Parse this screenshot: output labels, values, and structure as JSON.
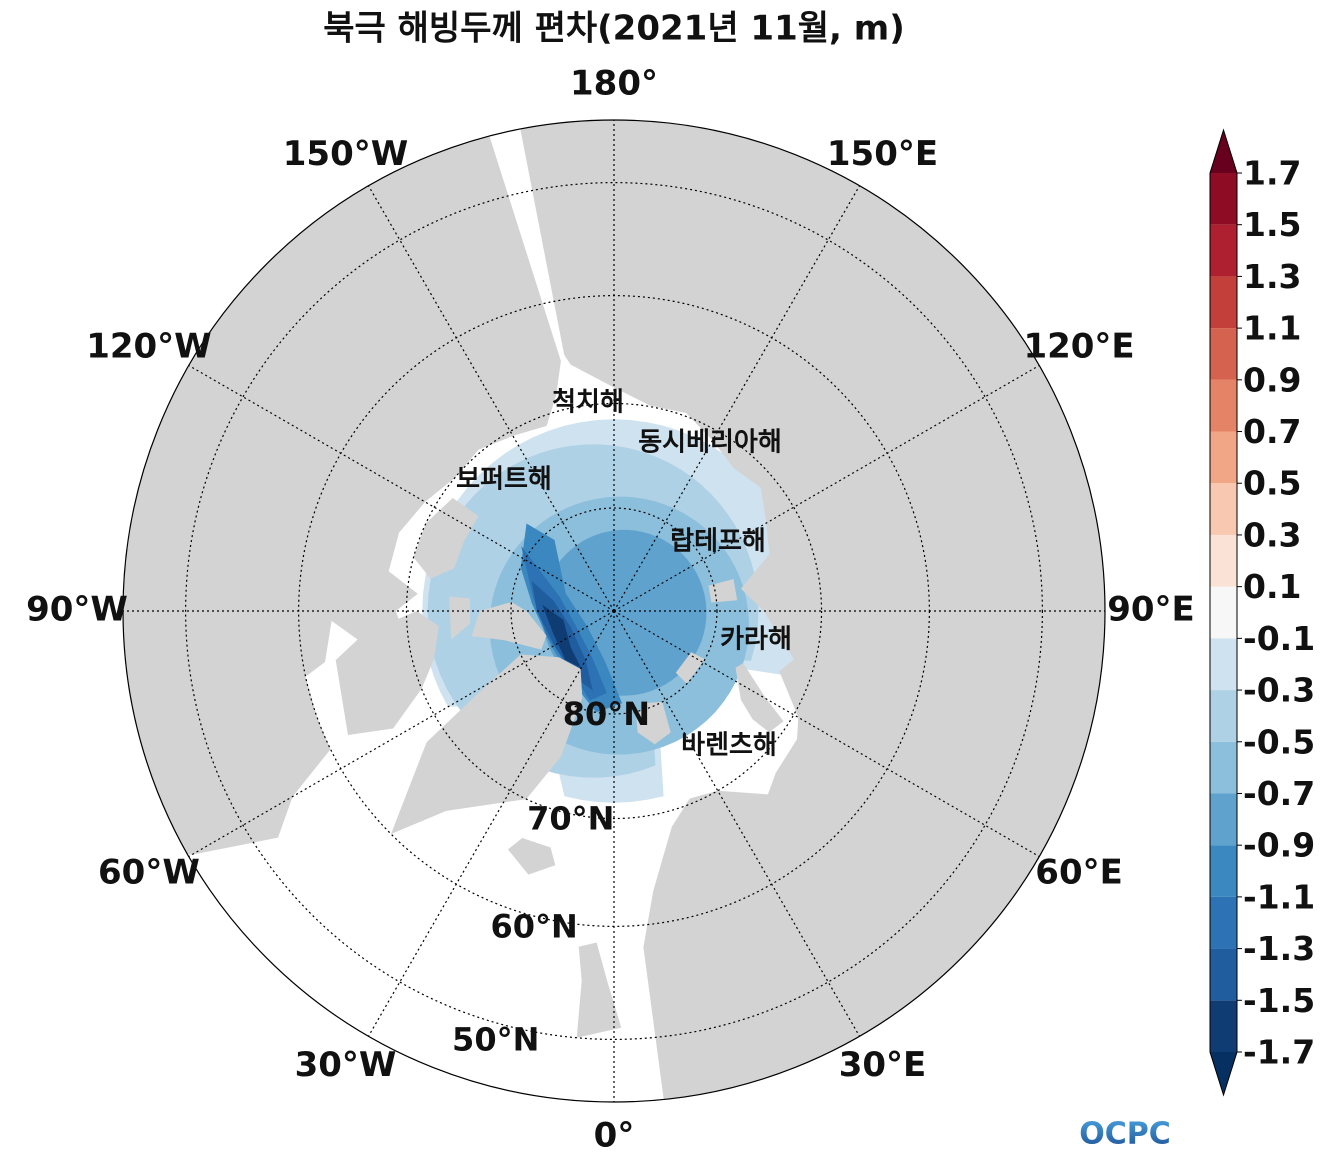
{
  "title": "북극 해빙두께 편차(2021년 11월, m)",
  "map": {
    "meridians": [
      {
        "value": 180,
        "label": "180°"
      },
      {
        "value": 150,
        "label": "150°E"
      },
      {
        "value": 120,
        "label": "120°E"
      },
      {
        "value": 90,
        "label": "90°E"
      },
      {
        "value": 60,
        "label": "60°E"
      },
      {
        "value": 30,
        "label": "30°E"
      },
      {
        "value": 0,
        "label": "0°"
      },
      {
        "value": -30,
        "label": "30°W"
      },
      {
        "value": -60,
        "label": "60°W"
      },
      {
        "value": -90,
        "label": "90°W"
      },
      {
        "value": -120,
        "label": "120°W"
      },
      {
        "value": -150,
        "label": "150°W"
      }
    ],
    "lat_circles": [
      {
        "value": 80,
        "label": "80°N"
      },
      {
        "value": 70,
        "label": "70°N"
      },
      {
        "value": 60,
        "label": "60°N"
      },
      {
        "value": 50,
        "label": "50°N"
      }
    ],
    "sea_labels": [
      "척치해",
      "동시베리아해",
      "보퍼트해",
      "랍테프해",
      "카라해",
      "바렌츠해"
    ],
    "land_color": "#d3d3d3"
  },
  "colorbar": {
    "ticks": [
      -1.7,
      -1.5,
      -1.3,
      -1.1,
      -0.9,
      -0.7,
      -0.5,
      -0.3,
      -0.1,
      0.1,
      0.3,
      0.5,
      0.7,
      0.9,
      1.1,
      1.3,
      1.5,
      1.7
    ],
    "colors": [
      "#0f3d73",
      "#1f5d9f",
      "#2c72b4",
      "#3b88c0",
      "#5fa2cd",
      "#8cbfdb",
      "#aed1e6",
      "#cfe2ef",
      "#f7f7f7",
      "#fbe2d6",
      "#f8c8b0",
      "#f1a686",
      "#e48365",
      "#d5624e",
      "#c33f3a",
      "#ae2030",
      "#8e0d25"
    ],
    "extend_colors": [
      "#053061",
      "#67001f"
    ]
  },
  "logo": "OCPC"
}
